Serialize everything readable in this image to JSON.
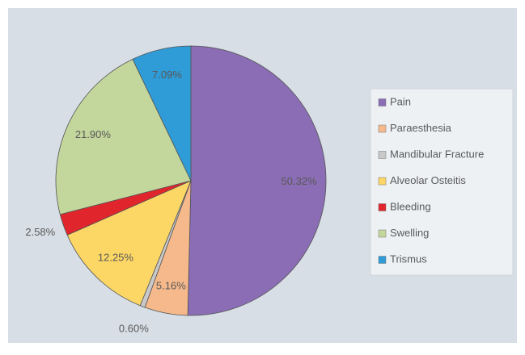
{
  "chart_data": {
    "type": "pie",
    "categories": [
      "Pain",
      "Paraesthesia",
      "Mandibular Fracture",
      "Alveolar Osteitis",
      "Bleeding",
      "Swelling",
      "Trismus"
    ],
    "values": [
      50.32,
      5.16,
      0.6,
      12.25,
      2.58,
      21.9,
      7.09
    ],
    "value_labels": [
      "50.32%",
      "5.16%",
      "0.60%",
      "12.25%",
      "2.58%",
      "21.90%",
      "7.09%"
    ],
    "colors": [
      "#8a6db4",
      "#f5b98b",
      "#c9c9c9",
      "#fdd766",
      "#e0252c",
      "#c3d69b",
      "#2f9bd7"
    ],
    "legend": "right"
  }
}
